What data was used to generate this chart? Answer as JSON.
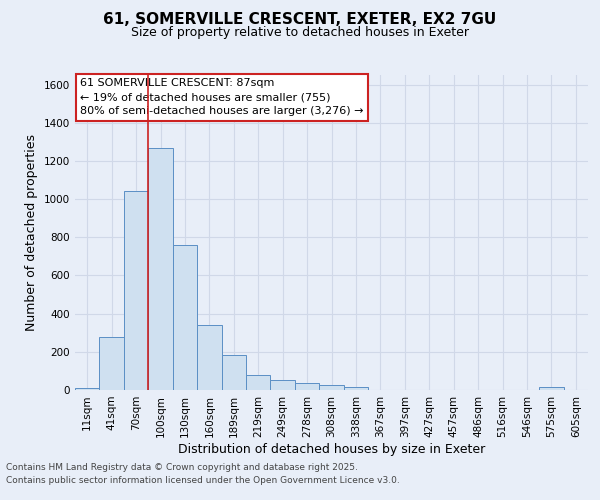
{
  "title_line1": "61, SOMERVILLE CRESCENT, EXETER, EX2 7GU",
  "title_line2": "Size of property relative to detached houses in Exeter",
  "xlabel": "Distribution of detached houses by size in Exeter",
  "ylabel": "Number of detached properties",
  "bins": [
    "11sqm",
    "41sqm",
    "70sqm",
    "100sqm",
    "130sqm",
    "160sqm",
    "189sqm",
    "219sqm",
    "249sqm",
    "278sqm",
    "308sqm",
    "338sqm",
    "367sqm",
    "397sqm",
    "427sqm",
    "457sqm",
    "486sqm",
    "516sqm",
    "546sqm",
    "575sqm",
    "605sqm"
  ],
  "values": [
    10,
    280,
    1040,
    1270,
    760,
    340,
    185,
    80,
    50,
    35,
    25,
    15,
    0,
    0,
    0,
    0,
    0,
    0,
    0,
    15,
    0
  ],
  "bar_color": "#cfe0f0",
  "bar_edge_color": "#5b8fc5",
  "redline_x": 2.5,
  "annotation_lines": [
    "61 SOMERVILLE CRESCENT: 87sqm",
    "← 19% of detached houses are smaller (755)",
    "80% of semi-detached houses are larger (3,276) →"
  ],
  "annotation_box_facecolor": "#ffffff",
  "annotation_box_edgecolor": "#cc2222",
  "ylim": [
    0,
    1650
  ],
  "yticks": [
    0,
    200,
    400,
    600,
    800,
    1000,
    1200,
    1400,
    1600
  ],
  "background_color": "#e8eef8",
  "grid_color": "#d0d8e8",
  "title_fontsize": 11,
  "subtitle_fontsize": 9,
  "axis_label_fontsize": 9,
  "tick_fontsize": 7.5,
  "annotation_fontsize": 8,
  "footer_fontsize": 6.5,
  "footer_line1": "Contains HM Land Registry data © Crown copyright and database right 2025.",
  "footer_line2": "Contains public sector information licensed under the Open Government Licence v3.0."
}
